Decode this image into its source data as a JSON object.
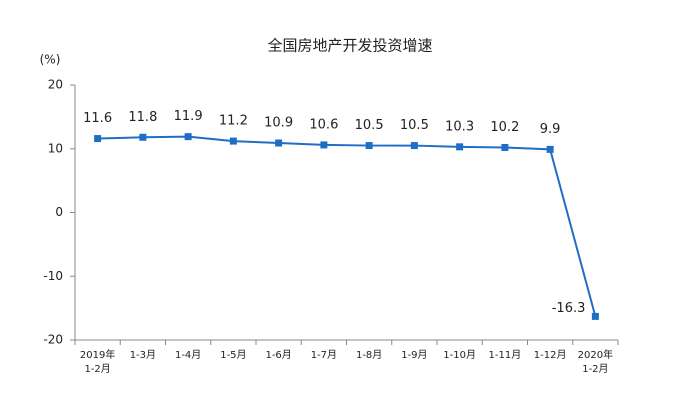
{
  "chart_data": {
    "type": "line",
    "title": "全国房地产开发投资增速",
    "y_label": "(%)",
    "categories": [
      "2019年 1-2月",
      "1-3月",
      "1-4月",
      "1-5月",
      "1-6月",
      "1-7月",
      "1-8月",
      "1-9月",
      "1-10月",
      "1-11月",
      "1-12月",
      "2020年 1-2月"
    ],
    "values": [
      11.6,
      11.8,
      11.9,
      11.2,
      10.9,
      10.6,
      10.5,
      10.5,
      10.3,
      10.2,
      9.9,
      -16.3
    ],
    "color": "#1f6ec6",
    "ylim": [
      -20,
      20
    ],
    "yticks": [
      -20,
      -10,
      0,
      10,
      20
    ],
    "grid": false
  }
}
